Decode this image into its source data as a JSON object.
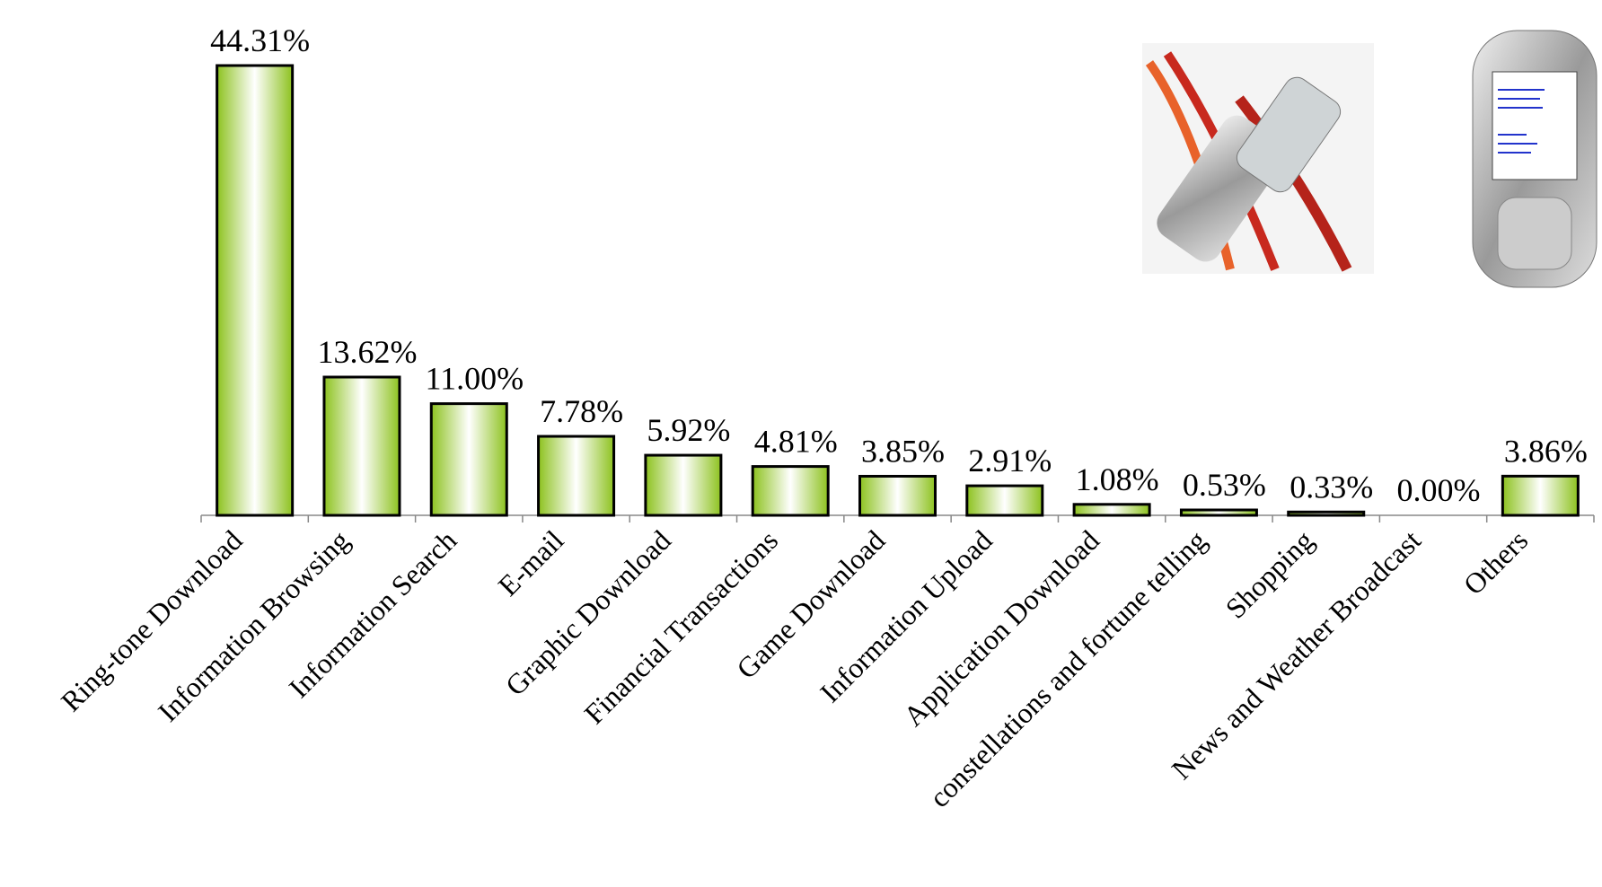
{
  "chart_data": {
    "type": "bar",
    "categories": [
      "Ring-tone Download",
      "Information Browsing",
      "Information Search",
      "E-mail",
      "Graphic Download",
      "Financial Transactions",
      "Game Download",
      "Information Upload",
      "Application Download",
      "constellations and fortune telling",
      "Shopping",
      "News and Weather Broadcast",
      "Others"
    ],
    "values": [
      44.31,
      13.62,
      11.0,
      7.78,
      5.92,
      4.81,
      3.85,
      2.91,
      1.08,
      0.53,
      0.33,
      0.0,
      3.86
    ],
    "value_labels": [
      "44.31%",
      "13.62%",
      "11.00%",
      "7.78%",
      "5.92%",
      "4.81%",
      "3.85%",
      "2.91%",
      "1.08%",
      "0.53%",
      "0.33%",
      "0.00%",
      "3.86%"
    ],
    "color": "#8dc21f"
  }
}
